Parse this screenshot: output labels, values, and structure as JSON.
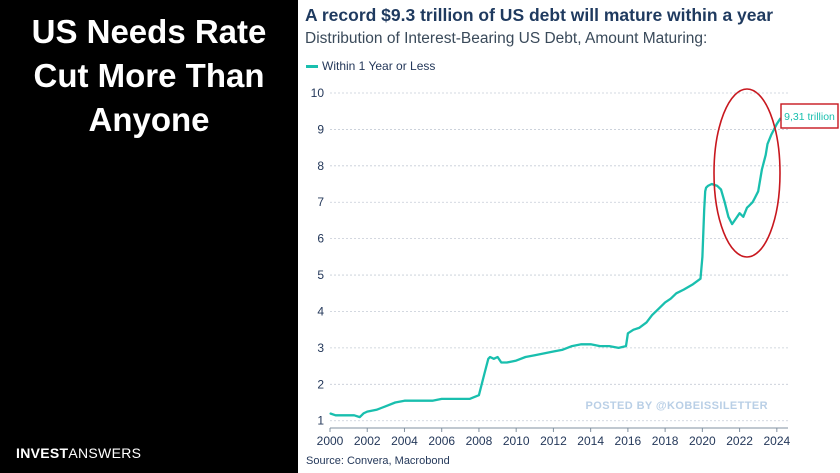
{
  "headline": [
    "US Needs Rate",
    "Cut More Than",
    "Anyone"
  ],
  "brand": {
    "bold": "INVEST",
    "light": "ANSWERS"
  },
  "colors": {
    "line": "#19bfae",
    "annotation": "#c8171e",
    "watermark": "#b9cfe6"
  },
  "chart_data": {
    "type": "line",
    "title": "A record $9.3 trillion of US debt will mature within a year",
    "subtitle": "Distribution of Interest-Bearing US Debt, Amount Maturing:",
    "xlabel": "",
    "ylabel": "",
    "xlim": [
      2000,
      2024.6
    ],
    "ylim": [
      0.8,
      10
    ],
    "yticks": [
      1,
      2,
      3,
      4,
      5,
      6,
      7,
      8,
      9,
      10
    ],
    "xticks": [
      2000,
      2002,
      2004,
      2006,
      2008,
      2010,
      2012,
      2014,
      2016,
      2018,
      2020,
      2022,
      2024
    ],
    "grid": true,
    "legend_position": "top-left",
    "series": [
      {
        "name": "Within 1 Year or Less",
        "x": [
          2000.0,
          2000.3,
          2000.8,
          2001.3,
          2001.6,
          2001.8,
          2002.0,
          2002.5,
          2003.0,
          2003.5,
          2004.0,
          2004.5,
          2005.0,
          2005.5,
          2006.0,
          2006.5,
          2007.0,
          2007.5,
          2008.0,
          2008.3,
          2008.5,
          2008.6,
          2008.8,
          2009.0,
          2009.2,
          2009.5,
          2010.0,
          2010.5,
          2011.0,
          2011.5,
          2012.0,
          2012.5,
          2013.0,
          2013.5,
          2014.0,
          2014.5,
          2015.0,
          2015.5,
          2015.9,
          2016.0,
          2016.3,
          2016.6,
          2017.0,
          2017.3,
          2017.6,
          2018.0,
          2018.3,
          2018.6,
          2019.0,
          2019.5,
          2019.9,
          2020.0,
          2020.1,
          2020.15,
          2020.2,
          2020.3,
          2020.5,
          2020.8,
          2021.0,
          2021.2,
          2021.4,
          2021.6,
          2021.8,
          2022.0,
          2022.2,
          2022.4,
          2022.5,
          2022.7,
          2022.8,
          2023.0,
          2023.2,
          2023.4,
          2023.5,
          2023.7,
          2024.0,
          2024.2
        ],
        "values": [
          1.2,
          1.15,
          1.15,
          1.15,
          1.1,
          1.2,
          1.25,
          1.3,
          1.4,
          1.5,
          1.55,
          1.55,
          1.55,
          1.55,
          1.6,
          1.6,
          1.6,
          1.6,
          1.7,
          2.3,
          2.7,
          2.75,
          2.7,
          2.75,
          2.6,
          2.6,
          2.65,
          2.75,
          2.8,
          2.85,
          2.9,
          2.95,
          3.05,
          3.1,
          3.1,
          3.05,
          3.05,
          3.0,
          3.05,
          3.4,
          3.5,
          3.55,
          3.7,
          3.9,
          4.05,
          4.25,
          4.35,
          4.5,
          4.6,
          4.75,
          4.9,
          5.5,
          6.8,
          7.3,
          7.4,
          7.45,
          7.5,
          7.45,
          7.35,
          7.0,
          6.6,
          6.4,
          6.55,
          6.7,
          6.6,
          6.85,
          6.9,
          7.0,
          7.1,
          7.3,
          7.9,
          8.3,
          8.6,
          8.85,
          9.15,
          9.31
        ]
      }
    ],
    "annotations": {
      "callout_label": "9,31 trillion",
      "watermark": "POSTED BY @KOBEISSILETTER",
      "source": "Source: Convera, Macrobond"
    }
  }
}
